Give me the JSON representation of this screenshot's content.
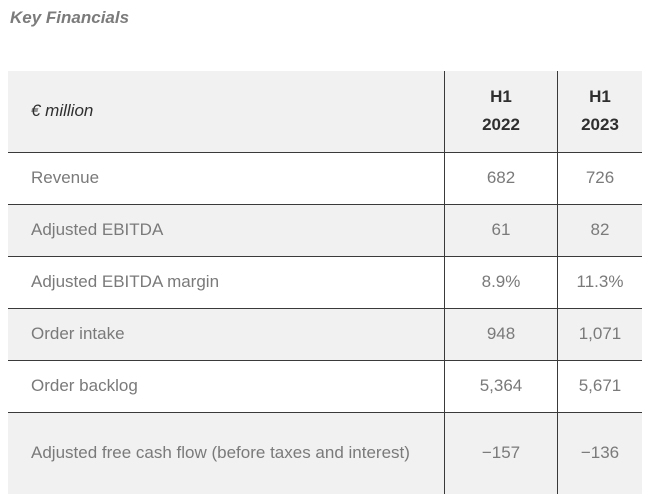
{
  "title": "Key Financials",
  "table": {
    "header": {
      "unit": "€ million",
      "col1": [
        "H1",
        "2022"
      ],
      "col2": [
        "H1",
        "2023"
      ]
    },
    "rows": [
      {
        "label": "Revenue",
        "h1_2022": "682",
        "h1_2023": "726"
      },
      {
        "label": "Adjusted EBITDA",
        "h1_2022": "61",
        "h1_2023": "82"
      },
      {
        "label": "Adjusted EBITDA margin",
        "h1_2022": "8.9%",
        "h1_2023": "11.3%"
      },
      {
        "label": "Order intake",
        "h1_2022": "948",
        "h1_2023": "1,071"
      },
      {
        "label": "Order backlog",
        "h1_2022": "5,364",
        "h1_2023": "5,671"
      },
      {
        "label": "Adjusted free cash flow (before taxes and interest)",
        "h1_2022": "−157",
        "h1_2023": "−136"
      }
    ]
  }
}
